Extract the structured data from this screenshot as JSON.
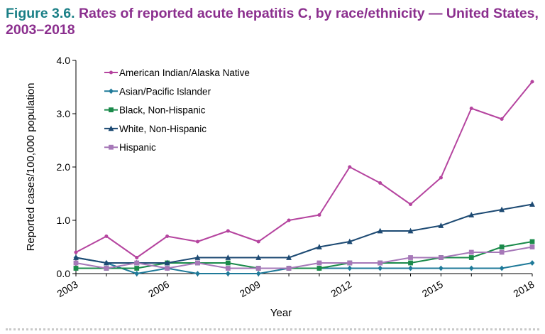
{
  "title": {
    "figure_label": "Figure 3.6.",
    "text": "Rates of reported acute hepatitis C, by race/ethnicity — United States, 2003–2018"
  },
  "chart_data": {
    "type": "line",
    "xlabel": "Year",
    "ylabel": "Reported cases/100,000 population",
    "x": [
      2003,
      2004,
      2005,
      2006,
      2007,
      2008,
      2009,
      2010,
      2011,
      2012,
      2013,
      2014,
      2015,
      2016,
      2017,
      2018
    ],
    "x_tick_labels": [
      "2003",
      "2006",
      "2009",
      "2012",
      "2015",
      "2018"
    ],
    "x_tick_values": [
      2003,
      2006,
      2009,
      2012,
      2015,
      2018
    ],
    "xlim": [
      2003,
      2018
    ],
    "y_tick_labels": [
      "0.0",
      "1.0",
      "2.0",
      "3.0",
      "4.0"
    ],
    "y_tick_values": [
      0,
      1,
      2,
      3,
      4
    ],
    "ylim": [
      0,
      4
    ],
    "grid": false,
    "legend_position": "top-left",
    "series": [
      {
        "name": "American Indian/Alaska Native",
        "color": "#b5449f",
        "marker": "circle",
        "values": [
          0.4,
          0.7,
          0.3,
          0.7,
          0.6,
          0.8,
          0.6,
          1.0,
          1.1,
          2.0,
          1.7,
          1.3,
          1.8,
          3.1,
          2.9,
          3.6
        ]
      },
      {
        "name": "Asian/Pacific Islander",
        "color": "#1f7a99",
        "marker": "diamond",
        "values": [
          0.3,
          0.2,
          0.0,
          0.1,
          0.0,
          0.0,
          0.0,
          0.1,
          0.1,
          0.1,
          0.1,
          0.1,
          0.1,
          0.1,
          0.1,
          0.2
        ]
      },
      {
        "name": "Black, Non-Hispanic",
        "color": "#1a8a4a",
        "marker": "square",
        "values": [
          0.1,
          0.1,
          0.1,
          0.2,
          0.2,
          0.2,
          0.1,
          0.1,
          0.1,
          0.2,
          0.2,
          0.2,
          0.3,
          0.3,
          0.5,
          0.6
        ]
      },
      {
        "name": "White, Non-Hispanic",
        "color": "#1d4a73",
        "marker": "triangle",
        "values": [
          0.3,
          0.2,
          0.2,
          0.2,
          0.3,
          0.3,
          0.3,
          0.3,
          0.5,
          0.6,
          0.8,
          0.8,
          0.9,
          1.1,
          1.2,
          1.3
        ]
      },
      {
        "name": "Hispanic",
        "color": "#a678b8",
        "marker": "square",
        "values": [
          0.2,
          0.1,
          0.2,
          0.1,
          0.2,
          0.1,
          0.1,
          0.1,
          0.2,
          0.2,
          0.2,
          0.3,
          0.3,
          0.4,
          0.4,
          0.5
        ]
      }
    ]
  }
}
